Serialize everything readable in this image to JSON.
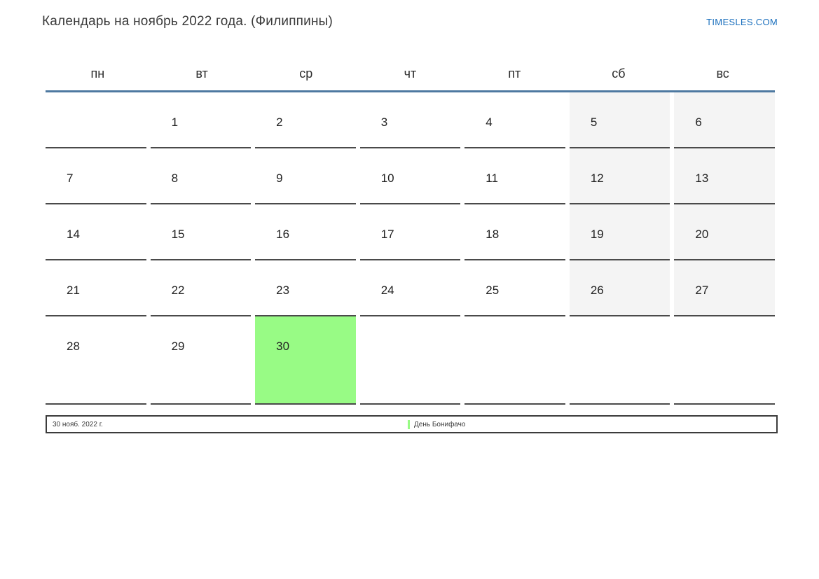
{
  "header": {
    "title": "Календарь на ноябрь 2022 года. (Филиппины)",
    "brand": "TIMESLES.COM"
  },
  "calendar": {
    "weekdays": [
      "пн",
      "вт",
      "ср",
      "чт",
      "пт",
      "сб",
      "вс"
    ],
    "weeks": [
      [
        "",
        "1",
        "2",
        "3",
        "4",
        "5",
        "6"
      ],
      [
        "7",
        "8",
        "9",
        "10",
        "11",
        "12",
        "13"
      ],
      [
        "14",
        "15",
        "16",
        "17",
        "18",
        "19",
        "20"
      ],
      [
        "21",
        "22",
        "23",
        "24",
        "25",
        "26",
        "27"
      ],
      [
        "28",
        "29",
        "30",
        "",
        "",
        "",
        ""
      ]
    ],
    "weekend_column_indexes": [
      5,
      6
    ],
    "holiday_day": "30"
  },
  "footer": {
    "date_label": "30 нояб. 2022 г.",
    "holiday_label": "День Бонифачо"
  },
  "colors": {
    "accent_line": "#4e79a1",
    "cell_border": "#4a4a4a",
    "weekend_bg": "#f4f4f4",
    "holiday_green": "#98fb85",
    "brand_blue": "#1a6fbd"
  }
}
